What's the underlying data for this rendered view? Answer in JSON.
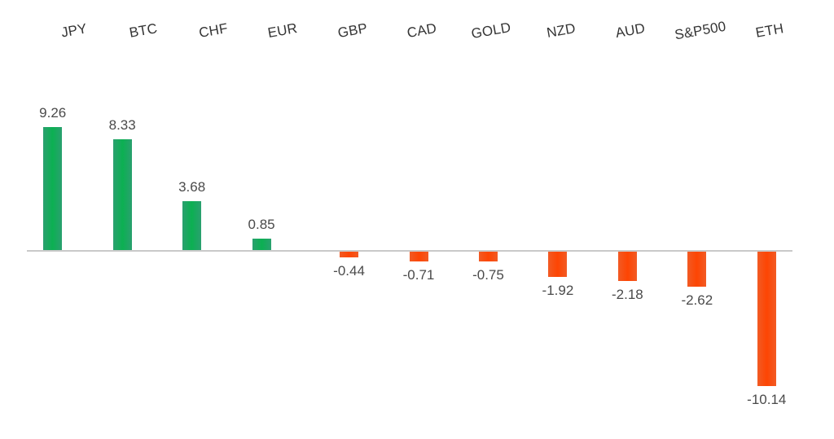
{
  "chart_data": {
    "type": "bar",
    "title": "",
    "xlabel": "",
    "ylabel": "",
    "categories": [
      "JPY",
      "BTC",
      "CHF",
      "EUR",
      "GBP",
      "CAD",
      "GOLD",
      "NZD",
      "AUD",
      "S&P500",
      "ETH"
    ],
    "values": [
      9.26,
      8.33,
      3.68,
      0.85,
      -0.44,
      -0.71,
      -0.75,
      -1.92,
      -2.18,
      -2.62,
      -10.14
    ],
    "value_labels": [
      "9.26",
      "8.33",
      "3.68",
      "0.85",
      "-0.44",
      "-0.71",
      "-0.75",
      "-1.92",
      "-2.18",
      "-2.62",
      "-10.14"
    ],
    "ylim": [
      -10.14,
      9.26
    ],
    "grid": false,
    "legend": false,
    "axis": {
      "zero_line_color": "#c9c9c9",
      "category_labels_position": "top",
      "category_labels_rotation_deg": -10
    },
    "colors": {
      "positive_center": "#0cb052",
      "positive_edge": "#2aa06f",
      "negative_center": "#fd4503",
      "negative_edge": "#f25b24",
      "value_label_text": "#4a4a4a",
      "category_label_text": "#343434",
      "background": "#ffffff"
    }
  }
}
